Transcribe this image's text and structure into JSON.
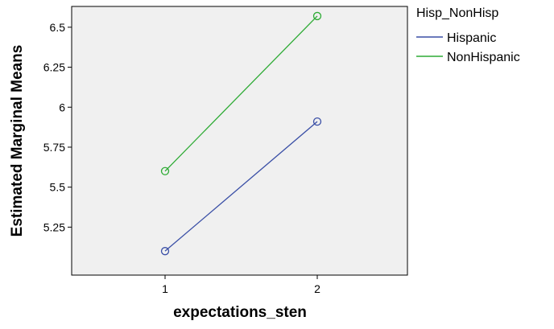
{
  "chart_data": {
    "type": "line",
    "title": "",
    "xlabel": "expectations_sten",
    "ylabel": "Estimated Marginal Means",
    "categories": [
      "1",
      "2"
    ],
    "ylim": [
      4.95,
      6.63
    ],
    "yticks": [
      "5.25",
      "5.5",
      "5.75",
      "6",
      "6.25",
      "6.5"
    ],
    "series": [
      {
        "name": "Hispanic",
        "values": [
          5.1,
          5.91
        ],
        "color": "#3a4fa6"
      },
      {
        "name": "NonHispanic",
        "values": [
          5.6,
          6.57
        ],
        "color": "#2eab35"
      }
    ],
    "legend": {
      "title": "Hisp_NonHisp",
      "placement": "right"
    },
    "grid": false,
    "plot_background": "#f0f0f0",
    "markers": "open-circle"
  }
}
